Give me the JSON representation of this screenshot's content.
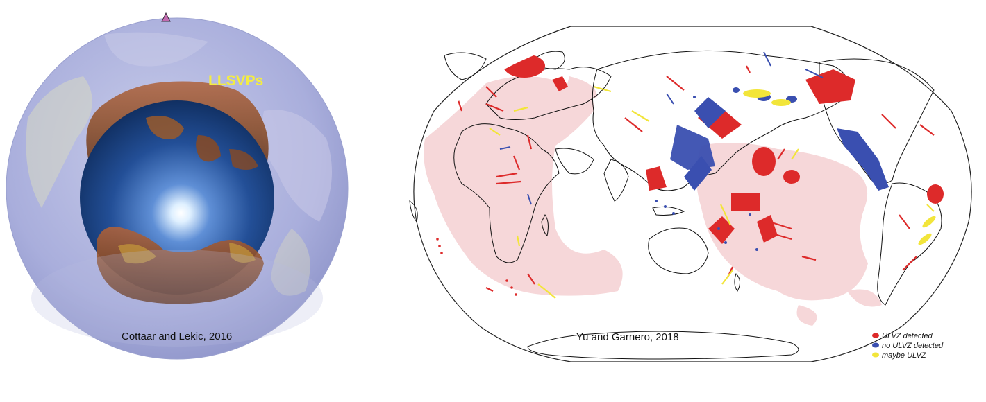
{
  "globe_panel": {
    "label": "LLSVPs",
    "citation": "Cottaar and Lekic, 2016",
    "marker_icon": "triangle-marker-icon"
  },
  "map_panel": {
    "citation": "Yu and Garnero, 2018",
    "legend": [
      {
        "label": "ULVZ detected",
        "color": "#dd2a2a"
      },
      {
        "label": "no ULVZ detected",
        "color": "#3a4fb0"
      },
      {
        "label": "maybe ULVZ",
        "color": "#f2e53a"
      }
    ]
  },
  "colors": {
    "ulvz_detected": "#dd2a2a",
    "no_ulvz": "#3a4fb0",
    "maybe_ulvz": "#f2e53a",
    "llsvp_region": "#f6d7d9",
    "globe_mantle": "#aeb3de",
    "core": "#1d4a8c",
    "llsvp_shell": "#8a4a22"
  }
}
